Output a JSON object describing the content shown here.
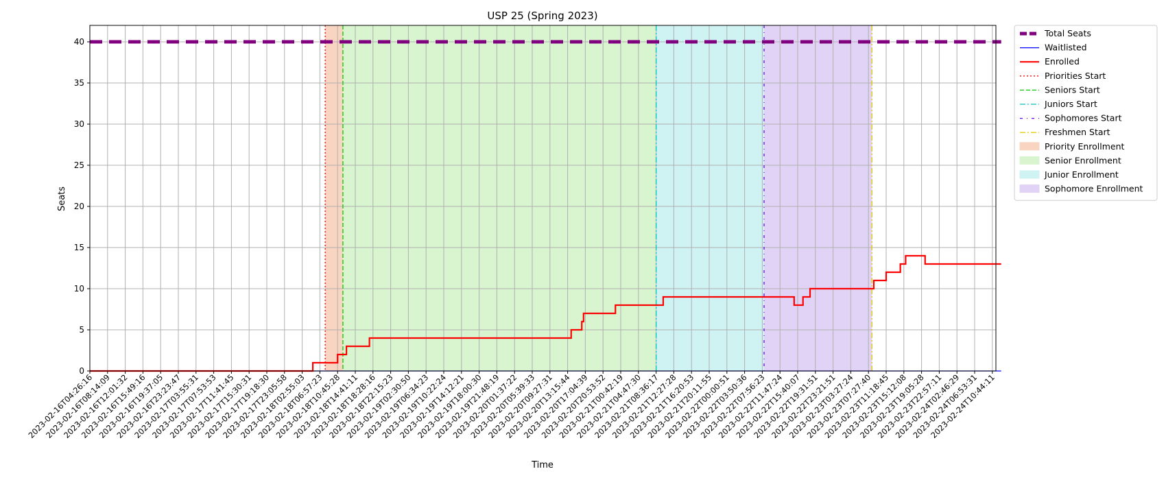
{
  "chart_data": {
    "type": "line",
    "title": "USP 25 (Spring 2023)",
    "xlabel": "Time",
    "ylabel": "Seats",
    "ylim": [
      0,
      42
    ],
    "yticks": [
      0,
      5,
      10,
      15,
      20,
      25,
      30,
      35,
      40
    ],
    "grid": true,
    "legend_position": "outside-right",
    "x_tick_labels": [
      "2023-02-16T04:26:16",
      "2023-02-16T08:14:09",
      "2023-02-16T12:01:32",
      "2023-02-16T15:49:16",
      "2023-02-16T19:37:05",
      "2023-02-16T23:23:47",
      "2023-02-17T03:55:31",
      "2023-02-17T07:53:53",
      "2023-02-17T11:41:45",
      "2023-02-17T15:30:31",
      "2023-02-17T19:18:30",
      "2023-02-17T23:05:58",
      "2023-02-18T02:55:03",
      "2023-02-18T06:57:23",
      "2023-02-18T10:45:28",
      "2023-02-18T14:41:11",
      "2023-02-18T18:28:16",
      "2023-02-18T22:15:23",
      "2023-02-19T02:30:50",
      "2023-02-19T06:34:23",
      "2023-02-19T10:22:24",
      "2023-02-19T14:12:21",
      "2023-02-19T18:00:30",
      "2023-02-19T21:48:19",
      "2023-02-20T01:37:22",
      "2023-02-20T05:39:33",
      "2023-02-20T09:27:31",
      "2023-02-20T13:15:44",
      "2023-02-20T17:04:39",
      "2023-02-20T20:53:52",
      "2023-02-21T00:42:19",
      "2023-02-21T04:47:30",
      "2023-02-21T08:36:17",
      "2023-02-21T12:27:28",
      "2023-02-21T16:20:53",
      "2023-02-21T20:11:55",
      "2023-02-22T00:00:51",
      "2023-02-22T03:50:36",
      "2023-02-22T07:56:23",
      "2023-02-22T11:47:24",
      "2023-02-22T15:40:07",
      "2023-02-22T19:31:51",
      "2023-02-22T23:21:51",
      "2023-02-23T03:27:24",
      "2023-02-23T07:27:40",
      "2023-02-23T11:18:45",
      "2023-02-23T15:12:08",
      "2023-02-23T19:05:28",
      "2023-02-23T22:57:11",
      "2023-02-24T02:46:29",
      "2023-02-24T06:53:31",
      "2023-02-24T10:44:11"
    ],
    "x_range_index": [
      0,
      51.5
    ],
    "series": [
      {
        "name": "Total Seats",
        "color": "#800080",
        "style": "dashed-thick",
        "points": [
          [
            0,
            40
          ],
          [
            51.5,
            40
          ]
        ]
      },
      {
        "name": "Waitlisted",
        "color": "#0000ff",
        "style": "solid",
        "points": [
          [
            0,
            0
          ],
          [
            51.5,
            0
          ]
        ]
      },
      {
        "name": "Enrolled",
        "color": "#ff0000",
        "style": "step",
        "points": [
          [
            0,
            0
          ],
          [
            12.6,
            0
          ],
          [
            12.6,
            1
          ],
          [
            12.6,
            1
          ],
          [
            14.0,
            1
          ],
          [
            14.0,
            2
          ],
          [
            14.5,
            2
          ],
          [
            14.5,
            3
          ],
          [
            15.8,
            3
          ],
          [
            15.8,
            4
          ],
          [
            27.2,
            4
          ],
          [
            27.2,
            5
          ],
          [
            27.8,
            5
          ],
          [
            27.8,
            6
          ],
          [
            27.9,
            6
          ],
          [
            27.9,
            7
          ],
          [
            29.7,
            7
          ],
          [
            29.7,
            8
          ],
          [
            32.4,
            8
          ],
          [
            32.4,
            9
          ],
          [
            39.8,
            9
          ],
          [
            39.8,
            8
          ],
          [
            40.3,
            8
          ],
          [
            40.3,
            9
          ],
          [
            40.7,
            9
          ],
          [
            40.7,
            10
          ],
          [
            44.3,
            10
          ],
          [
            44.3,
            11
          ],
          [
            45.0,
            11
          ],
          [
            45.0,
            12
          ],
          [
            45.8,
            12
          ],
          [
            45.8,
            13
          ],
          [
            46.1,
            13
          ],
          [
            46.1,
            14
          ],
          [
            47.2,
            14
          ],
          [
            47.2,
            13
          ],
          [
            51.5,
            13
          ]
        ]
      }
    ],
    "markers": [
      {
        "name": "Priorities Start",
        "x": 13.3,
        "color": "#ff0000",
        "style": "dotted"
      },
      {
        "name": "Seniors Start",
        "x": 14.3,
        "color": "#00cc00",
        "style": "dashed"
      },
      {
        "name": "Juniors Start",
        "x": 32.0,
        "color": "#00bfbf",
        "style": "dashdot"
      },
      {
        "name": "Sophomores Start",
        "x": 38.1,
        "color": "#6a00ff",
        "style": "dense-dashdot"
      },
      {
        "name": "Freshmen Start",
        "x": 44.2,
        "color": "#e6cc00",
        "style": "dashdot"
      }
    ],
    "spans": [
      {
        "name": "Priority Enrollment",
        "from": 13.3,
        "to": 14.3,
        "color": "#f9d5c1"
      },
      {
        "name": "Senior Enrollment",
        "from": 14.3,
        "to": 32.0,
        "color": "#d8f5d0"
      },
      {
        "name": "Junior Enrollment",
        "from": 32.0,
        "to": 38.1,
        "color": "#cff2f3"
      },
      {
        "name": "Sophomore Enrollment",
        "from": 38.1,
        "to": 44.2,
        "color": "#e0d3f5"
      }
    ]
  }
}
